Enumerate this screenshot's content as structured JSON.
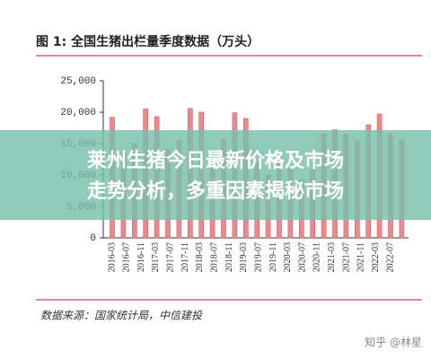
{
  "chart_data": {
    "type": "bar",
    "title": "图 1: 全国生猪出栏量季度数据（万头）",
    "source": "数据来源：国家统计局，中信建投",
    "x_labels": [
      "2016-03",
      "2016-07",
      "2016-11",
      "2017-03",
      "2017-07",
      "2017-11",
      "2018-03",
      "2018-07",
      "2018-11",
      "2019-03",
      "2019-07",
      "2019-11",
      "2020-03",
      "2020-07",
      "2020-11",
      "2021-03",
      "2021-07",
      "2021-11",
      "2022-03",
      "2022-07"
    ],
    "values": [
      19200,
      13500,
      15000,
      20500,
      19300,
      14000,
      15500,
      20600,
      20000,
      14000,
      15700,
      19900,
      19000,
      12000,
      10000,
      13000,
      11200,
      9200,
      10800,
      16500,
      17200,
      16500,
      15500,
      18000,
      19700,
      16500,
      15600
    ],
    "color": "#eb8a8e",
    "ylim": [
      0,
      25000
    ],
    "yticks": [
      0,
      {
        "value": 5000,
        "label": "5,000"
      },
      {
        "value": 10000,
        "label": "10,000"
      },
      {
        "value": 15000,
        "label": "15,000"
      },
      {
        "value": 20000,
        "label": "20,000"
      },
      {
        "value": 25000,
        "label": "25,000"
      }
    ]
  },
  "banner": {
    "lines": [
      "莱州生猪今日最新价格及市场",
      "走势分析，多重因素揭秘市场"
    ]
  },
  "watermark": "知乎 @林星"
}
